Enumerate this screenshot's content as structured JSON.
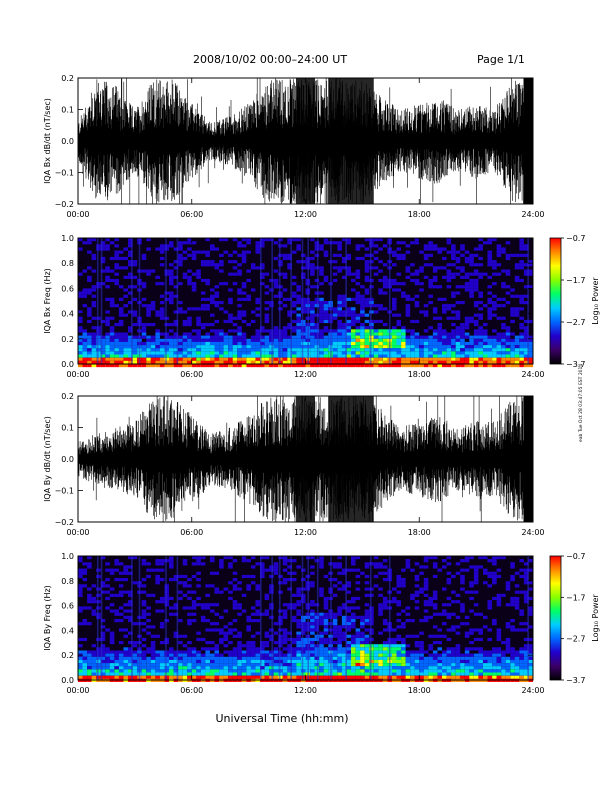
{
  "header": {
    "title": "2008/10/02  00:00–24:00 UT",
    "page": "Page 1/1"
  },
  "side_stamp": "eab Tue Oct 28 03:47:05 EST 2014",
  "x_axis": {
    "label": "Universal Time (hh:mm)",
    "ticks": [
      "00:00",
      "06:00",
      "12:00",
      "18:00",
      "24:00"
    ],
    "range_hours": [
      0,
      24
    ]
  },
  "colors": {
    "colorbar": [
      "#000000",
      "#3a0066",
      "#2200cc",
      "#0066ff",
      "#00ccff",
      "#00ff66",
      "#88ff00",
      "#ffff00",
      "#ff8800",
      "#ff0000"
    ],
    "spectrogram_background": "#0a0018",
    "trace": "#000000"
  },
  "chart_data": [
    {
      "type": "line",
      "ylabel": "IQA Bx dB/dt (nT/sec)",
      "ylim": [
        -0.2,
        0.2
      ],
      "yticks": [
        "0.2",
        "0.1",
        "0.0",
        "−0.1",
        "−0.2"
      ],
      "xlim": [
        0,
        24
      ],
      "envelope_hours": [
        0,
        1,
        2,
        3,
        4,
        5,
        6,
        7,
        8,
        9,
        10,
        11,
        12,
        13,
        14,
        15,
        16,
        17,
        18,
        19,
        20,
        21,
        22,
        23,
        24
      ],
      "envelope_amplitude": [
        0.06,
        0.2,
        0.18,
        0.1,
        0.2,
        0.2,
        0.12,
        0.06,
        0.08,
        0.12,
        0.2,
        0.2,
        0.2,
        0.2,
        0.2,
        0.2,
        0.14,
        0.1,
        0.12,
        0.14,
        0.1,
        0.12,
        0.1,
        0.2,
        0.2
      ]
    },
    {
      "type": "heatmap",
      "ylabel": "IQA Bx Freq (Hz)",
      "ylim": [
        0.0,
        1.0
      ],
      "yticks": [
        "1.0",
        "0.8",
        "0.6",
        "0.4",
        "0.2",
        "0.0"
      ],
      "xlim": [
        0,
        24
      ],
      "colorbar_label": "Log₁₀ Power",
      "colorbar_range": [
        -3.7,
        -0.7
      ],
      "colorbar_ticks": [
        "−0.7",
        "−1.7",
        "−2.7",
        "−3.7"
      ]
    },
    {
      "type": "line",
      "ylabel": "IQA By dB/dt (nT/sec)",
      "ylim": [
        -0.2,
        0.2
      ],
      "yticks": [
        "0.2",
        "0.1",
        "0.0",
        "−0.1",
        "−0.2"
      ],
      "xlim": [
        0,
        24
      ],
      "envelope_hours": [
        0,
        1,
        2,
        3,
        4,
        5,
        6,
        7,
        8,
        9,
        10,
        11,
        12,
        13,
        14,
        15,
        16,
        17,
        18,
        19,
        20,
        21,
        22,
        23,
        24
      ],
      "envelope_amplitude": [
        0.06,
        0.08,
        0.1,
        0.12,
        0.2,
        0.2,
        0.14,
        0.08,
        0.1,
        0.14,
        0.2,
        0.2,
        0.2,
        0.2,
        0.2,
        0.2,
        0.16,
        0.1,
        0.12,
        0.14,
        0.1,
        0.12,
        0.12,
        0.2,
        0.2
      ]
    },
    {
      "type": "heatmap",
      "ylabel": "IQA By Freq (Hz)",
      "ylim": [
        0.0,
        1.0
      ],
      "yticks": [
        "1.0",
        "0.8",
        "0.6",
        "0.4",
        "0.2",
        "0.0"
      ],
      "xlim": [
        0,
        24
      ],
      "colorbar_label": "Log₁₀ Power",
      "colorbar_range": [
        -3.7,
        -0.7
      ],
      "colorbar_ticks": [
        "−0.7",
        "−1.7",
        "−2.7",
        "−3.7"
      ]
    }
  ]
}
